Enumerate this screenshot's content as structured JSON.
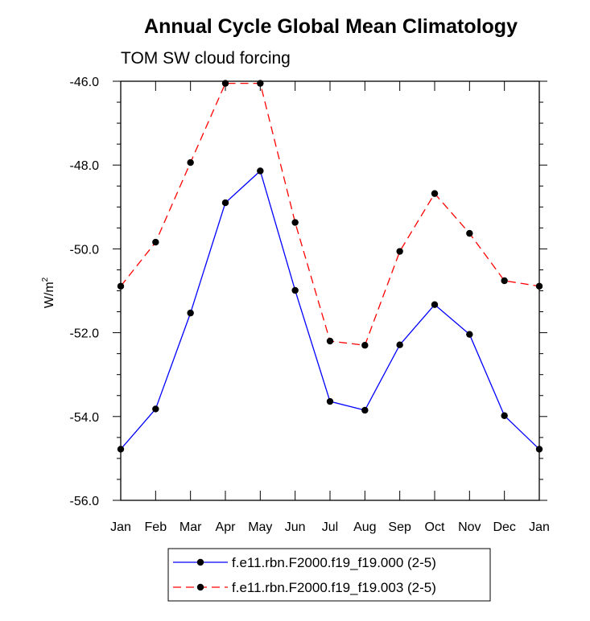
{
  "chart_data": {
    "type": "line",
    "title": "Annual Cycle Global Mean Climatology",
    "subtitle": "TOM SW cloud forcing",
    "xlabel": "",
    "ylabel": "W/m",
    "ylabel_superscript": "2",
    "categories": [
      "Jan",
      "Feb",
      "Mar",
      "Apr",
      "May",
      "Jun",
      "Jul",
      "Aug",
      "Sep",
      "Oct",
      "Nov",
      "Dec",
      "Jan"
    ],
    "ylim": [
      -56.0,
      -46.0
    ],
    "yticks": [
      "-46.0",
      "-48.0",
      "-50.0",
      "-52.0",
      "-54.0",
      "-56.0"
    ],
    "ytick_values": [
      -46,
      -48,
      -50,
      -52,
      -54,
      -56
    ],
    "series": [
      {
        "name": "f.e11.rbn.F2000.f19_f19.000 (2-5)",
        "color": "#0000ff",
        "dash": "solid",
        "values": [
          -54.78,
          -53.82,
          -51.53,
          -48.9,
          -48.14,
          -50.99,
          -53.64,
          -53.85,
          -52.29,
          -51.33,
          -52.04,
          -53.98,
          -54.78
        ]
      },
      {
        "name": "f.e11.rbn.F2000.f19_f19.003 (2-5)",
        "color": "#ff0000",
        "dash": "dashed",
        "values": [
          -50.89,
          -49.84,
          -47.94,
          -46.05,
          -46.05,
          -49.37,
          -52.2,
          -52.3,
          -50.06,
          -48.68,
          -49.63,
          -50.76,
          -50.89
        ]
      }
    ],
    "legend_position": "bottom-center",
    "grid": false
  }
}
